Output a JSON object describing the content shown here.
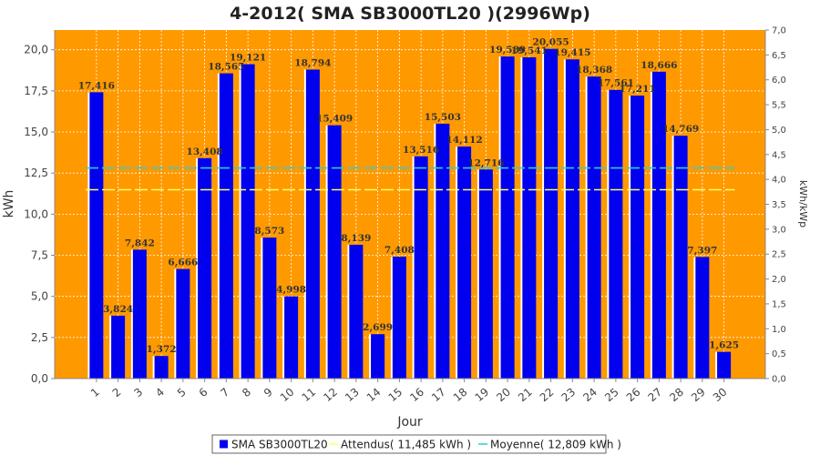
{
  "chart_data": {
    "type": "bar",
    "title": "4-2012( SMA SB3000TL20 )(2996Wp)",
    "xlabel": "Jour",
    "ylabel": "kWh",
    "y2label": "kWh/kWp",
    "ylim": [
      0,
      21.2
    ],
    "y2lim": [
      0,
      7.0
    ],
    "yticks": [
      "0,0",
      "2,5",
      "5,0",
      "7,5",
      "10,0",
      "12,5",
      "15,0",
      "17,5",
      "20,0"
    ],
    "y2ticks": [
      "0,0",
      "0,5",
      "1,0",
      "1,5",
      "2,0",
      "2,5",
      "3,0",
      "3,5",
      "4,0",
      "4,5",
      "5,0",
      "5,5",
      "6,0",
      "6,5",
      "7,0"
    ],
    "categories": [
      "1",
      "2",
      "3",
      "4",
      "5",
      "6",
      "7",
      "8",
      "9",
      "10",
      "11",
      "12",
      "13",
      "14",
      "15",
      "16",
      "17",
      "18",
      "19",
      "20",
      "21",
      "22",
      "23",
      "24",
      "25",
      "26",
      "27",
      "28",
      "29",
      "30"
    ],
    "series": [
      {
        "name": "SMA SB3000TL20",
        "color": "#0000ee",
        "values": [
          17.416,
          3.824,
          7.842,
          1.372,
          6.666,
          13.408,
          18.565,
          19.121,
          8.573,
          4.998,
          18.794,
          15.409,
          8.139,
          2.699,
          7.408,
          13.516,
          15.503,
          14.112,
          12.716,
          19.589,
          19.541,
          20.055,
          19.415,
          18.368,
          17.561,
          17.211,
          18.666,
          14.769,
          7.397,
          1.625
        ],
        "labels": [
          "17,416",
          "3,824",
          "7,842",
          "1,372",
          "6,666",
          "13,408",
          "18,565",
          "19,121",
          "8,573",
          "4,998",
          "18,794",
          "15,409",
          "8,139",
          "2,699",
          "7,408",
          "13,516",
          "15,503",
          "14,112",
          "12,716",
          "19,589",
          "19,541",
          "20,055",
          "19,415",
          "18,368",
          "17,561",
          "17,211",
          "18,666",
          "14,769",
          "7,397",
          "1,625"
        ]
      }
    ],
    "lines": [
      {
        "name": "Attendus",
        "value": 11.485,
        "color": "#ffff66"
      },
      {
        "name": "Moyenne",
        "value": 12.809,
        "color": "#33cccc"
      }
    ],
    "grid": true,
    "background": "#ff9900",
    "legend": "bottom",
    "legend_entries": [
      {
        "text": "SMA SB3000TL20",
        "color": "#0000ee",
        "kind": "box"
      },
      {
        "text": "Attendus( 11,485 kWh )",
        "color": "#ffff66",
        "kind": "line"
      },
      {
        "text": "Moyenne( 12,809 kWh )",
        "color": "#33cccc",
        "kind": "line"
      }
    ]
  }
}
